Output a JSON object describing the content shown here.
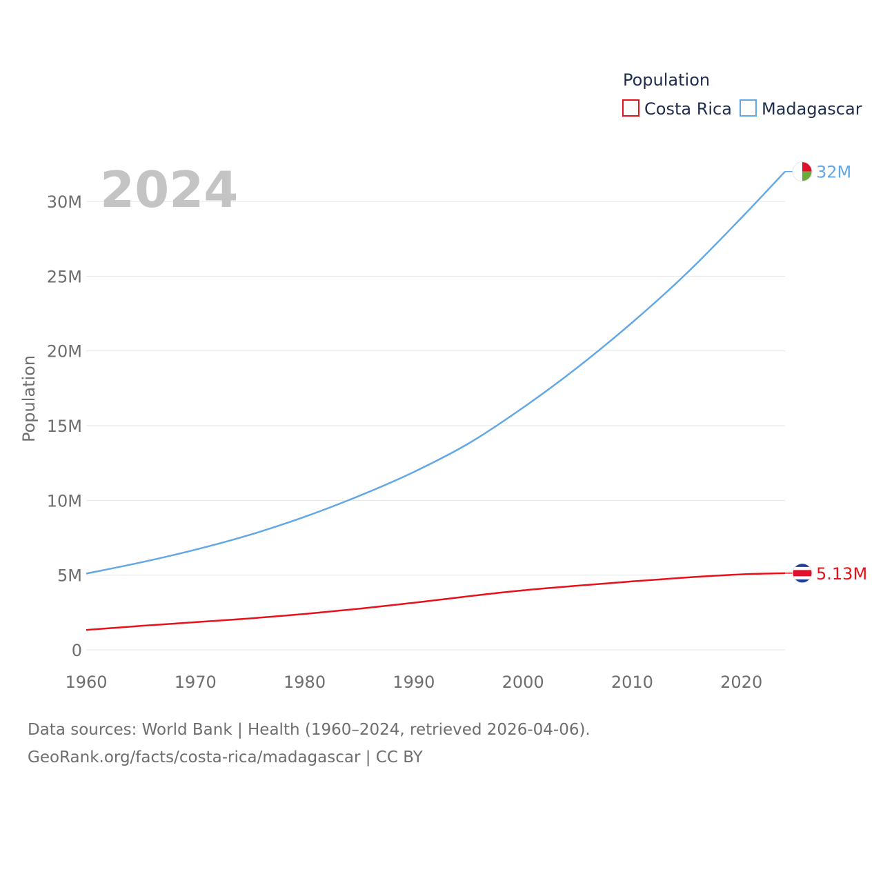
{
  "chart_data": {
    "type": "line",
    "year_label": "2024",
    "ylabel": "Population",
    "xlabel": "",
    "x_ticks": [
      "1960",
      "1970",
      "1980",
      "1990",
      "2000",
      "2010",
      "2020"
    ],
    "y_ticks": [
      "0",
      "5M",
      "10M",
      "15M",
      "20M",
      "25M",
      "30M"
    ],
    "y_tick_values": [
      0,
      5000000,
      10000000,
      15000000,
      20000000,
      25000000,
      30000000
    ],
    "xlim": [
      1960,
      2024
    ],
    "ylim": [
      0,
      30000000
    ],
    "legend": {
      "title": "Population",
      "position": "top-right"
    },
    "x": [
      1960,
      1965,
      1970,
      1975,
      1980,
      1985,
      1990,
      1995,
      2000,
      2005,
      2010,
      2015,
      2020,
      2024
    ],
    "series": [
      {
        "name": "Costa Rica",
        "color": "#e8101a",
        "end_label": "5.13M",
        "flag": "costa-rica-flag-icon",
        "values": [
          1330000,
          1600000,
          1850000,
          2100000,
          2400000,
          2750000,
          3150000,
          3580000,
          3980000,
          4290000,
          4580000,
          4840000,
          5050000,
          5130000
        ]
      },
      {
        "name": "Madagascar",
        "color": "#63a8e6",
        "end_label": "32M",
        "flag": "madagascar-flag-icon",
        "values": [
          5100000,
          5850000,
          6700000,
          7700000,
          8900000,
          10300000,
          11900000,
          13800000,
          16200000,
          18900000,
          21900000,
          25200000,
          28900000,
          32000000
        ]
      }
    ]
  },
  "footer": {
    "line1": "Data sources: World Bank | Health (1960–2024, retrieved 2026-04-06).",
    "line2": "GeoRank.org/facts/costa-rica/madagascar | CC BY"
  }
}
